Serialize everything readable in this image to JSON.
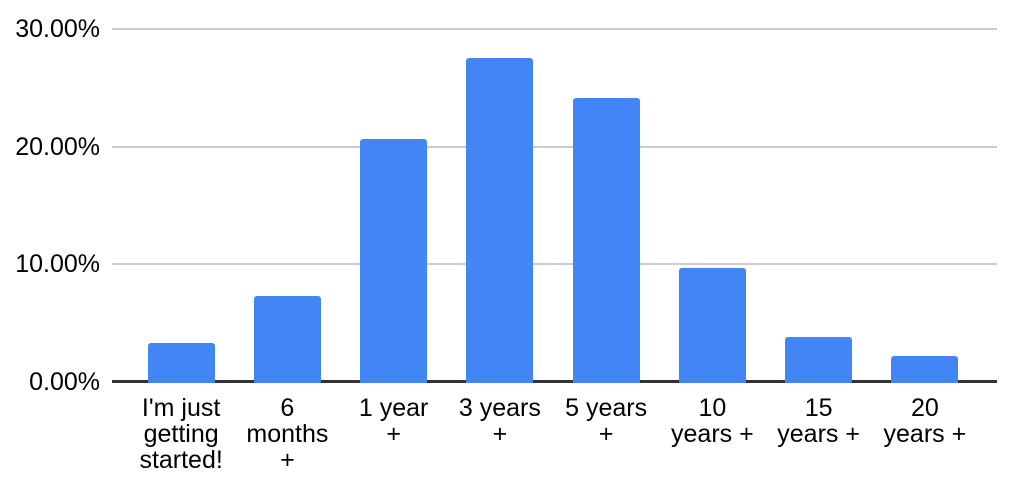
{
  "chart_data": {
    "type": "bar",
    "title": "",
    "xlabel": "",
    "ylabel": "",
    "categories": [
      "I'm just getting started!",
      "6 months +",
      "1 year +",
      "3 years +",
      "5 years +",
      "10 years +",
      "15 years +",
      "20 years +"
    ],
    "category_display_lines": [
      [
        "I'm just",
        "getting",
        "started!"
      ],
      [
        "6",
        "months",
        "+"
      ],
      [
        "1 year",
        "+"
      ],
      [
        "3 years",
        "+"
      ],
      [
        "5 years",
        "+"
      ],
      [
        "10",
        "years +"
      ],
      [
        "15",
        "years +"
      ],
      [
        "20",
        "years +"
      ]
    ],
    "values": [
      3.4,
      7.4,
      20.7,
      27.6,
      24.2,
      9.8,
      3.9,
      2.3
    ],
    "value_unit": "%",
    "ylim": [
      0,
      30
    ],
    "yticks": [
      {
        "value": 0,
        "label": "0.00%"
      },
      {
        "value": 10,
        "label": "10.00%"
      },
      {
        "value": 20,
        "label": "20.00%"
      },
      {
        "value": 30,
        "label": "30.00%"
      }
    ],
    "grid": true,
    "legend": "none",
    "colors": {
      "bar": "#4285f4",
      "gridline": "#cccccc",
      "axis": "#333333",
      "label": "#000000"
    }
  }
}
